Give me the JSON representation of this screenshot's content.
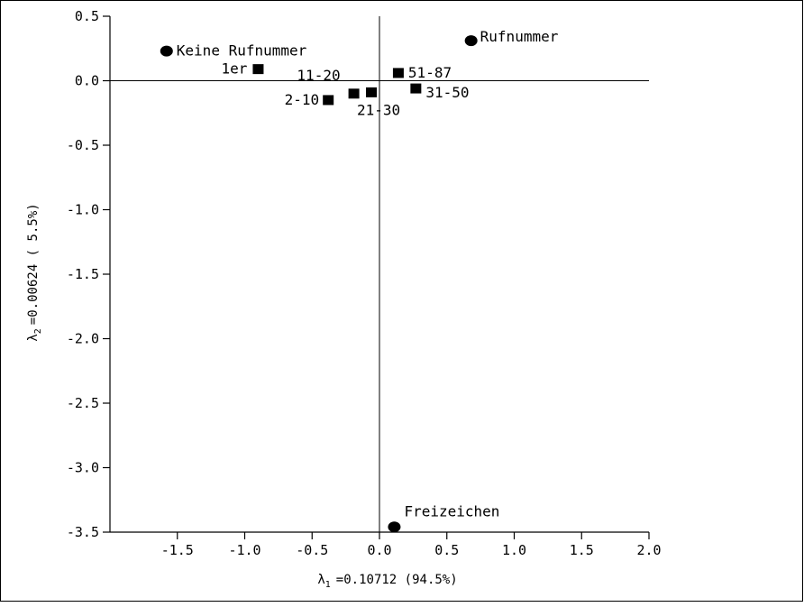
{
  "chart_data": {
    "type": "scatter",
    "xlabel": {
      "symbol": "λ",
      "sub": "1",
      "text": "=0.10712 (94.5%)"
    },
    "ylabel": {
      "symbol": "λ",
      "sub": "2",
      "text": "=0.00624 ( 5.5%)"
    },
    "xlim": [
      -2.0,
      2.0
    ],
    "ylim": [
      -3.5,
      0.5
    ],
    "xticks": [
      -1.5,
      -1.0,
      -0.5,
      0.0,
      0.5,
      1.0,
      1.5,
      2.0
    ],
    "xtick_labels": [
      "-1.5",
      "-1.0",
      "-0.5",
      "0.0",
      "0.5",
      "1.0",
      "1.5",
      "2.0"
    ],
    "yticks": [
      0.5,
      0.0,
      -0.5,
      -1.0,
      -1.5,
      -2.0,
      -2.5,
      -3.0,
      -3.5
    ],
    "ytick_labels": [
      "0.5",
      "0.0",
      "-0.5",
      "-1.0",
      "-1.5",
      "-2.0",
      "-2.5",
      "-3.0",
      "-3.5"
    ],
    "reference_lines": {
      "x": 0.0,
      "y": 0.0
    },
    "grid": false,
    "series": [
      {
        "marker": "circle",
        "points": [
          {
            "label": "Keine Rufnummer",
            "x": -1.58,
            "y": 0.23
          },
          {
            "label": "Rufnummer",
            "x": 0.68,
            "y": 0.31
          },
          {
            "label": "Freizeichen",
            "x": 0.11,
            "y": -3.46
          }
        ]
      },
      {
        "marker": "square",
        "points": [
          {
            "label": "1er",
            "x": -0.9,
            "y": 0.09
          },
          {
            "label": "11-20",
            "x": -0.19,
            "y": -0.1
          },
          {
            "label": "2-10",
            "x": -0.38,
            "y": -0.15
          },
          {
            "label": "21-30",
            "x": -0.06,
            "y": -0.09
          },
          {
            "label": "51-87",
            "x": 0.14,
            "y": 0.06
          },
          {
            "label": "31-50",
            "x": 0.27,
            "y": -0.06
          }
        ]
      }
    ]
  }
}
